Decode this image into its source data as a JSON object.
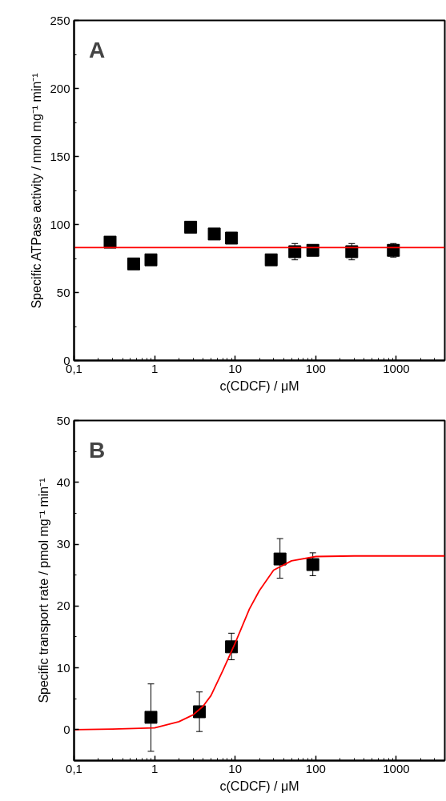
{
  "chart_data": [
    {
      "type": "scatter",
      "annotations": [
        "A"
      ],
      "xlabel": "c(CDCF) / μM",
      "ylabel": "Specific ATPase activity / nmol mg⁻¹ min⁻¹",
      "log": "x",
      "grid": false,
      "marker": "square",
      "xlim": [
        0.1,
        4000
      ],
      "xticks": [
        {
          "value": 0.1,
          "label": "0,1"
        },
        1,
        10,
        100,
        1000
      ],
      "ylim": [
        0,
        250
      ],
      "yticks": [
        0,
        50,
        100,
        150,
        200,
        250
      ],
      "series": [
        {
          "color": "#000000",
          "x": [
            0.28,
            0.55,
            0.9,
            2.8,
            5.5,
            9,
            28,
            55,
            92,
            280,
            920
          ],
          "values": [
            87,
            71,
            74,
            98,
            93,
            90,
            74,
            80,
            81,
            80,
            81
          ],
          "errors": [
            null,
            null,
            null,
            null,
            null,
            null,
            null,
            [
              74,
              86
            ],
            null,
            [
              74,
              86
            ],
            [
              76,
              86
            ]
          ]
        },
        {
          "type": "line",
          "marker": "none",
          "color": "#ff0000",
          "line_style": "solid",
          "x": [
            0.1,
            4000
          ],
          "values": [
            83,
            83
          ]
        }
      ]
    },
    {
      "type": "scatter",
      "annotations": [
        "B"
      ],
      "xlabel": "c(CDCF) / μM",
      "ylabel": "Specific transport rate / pmol mg⁻¹ min⁻¹",
      "log": "x",
      "grid": false,
      "marker": "square",
      "xlim": [
        0.1,
        4000
      ],
      "xticks": [
        {
          "value": 0.1,
          "label": "0,1"
        },
        1,
        10,
        100,
        1000
      ],
      "ylim": [
        -5,
        50
      ],
      "yticks": [
        0,
        10,
        20,
        30,
        40,
        50
      ],
      "series": [
        {
          "color": "#000000",
          "x": [
            0.9,
            3.6,
            9,
            36,
            92
          ],
          "values": [
            2,
            2.9,
            13.4,
            27.6,
            26.7
          ],
          "errors": [
            [
              -3.5,
              7.4
            ],
            [
              -0.3,
              6.1
            ],
            [
              11.3,
              15.6
            ],
            [
              24.5,
              30.9
            ],
            [
              24.9,
              28.6
            ]
          ]
        },
        {
          "type": "line",
          "marker": "none",
          "color": "#ff0000",
          "line_style": "solid",
          "x": [
            0.1,
            0.3,
            1,
            2,
            3,
            4,
            5,
            7,
            10,
            15,
            20,
            30,
            50,
            100,
            300,
            1000,
            4000
          ],
          "values": [
            0,
            0.1,
            0.3,
            1.3,
            2.4,
            3.8,
            5.5,
            9.5,
            14.0,
            19.5,
            22.5,
            25.8,
            27.3,
            28.0,
            28.1,
            28.1,
            28.1
          ]
        }
      ]
    }
  ]
}
